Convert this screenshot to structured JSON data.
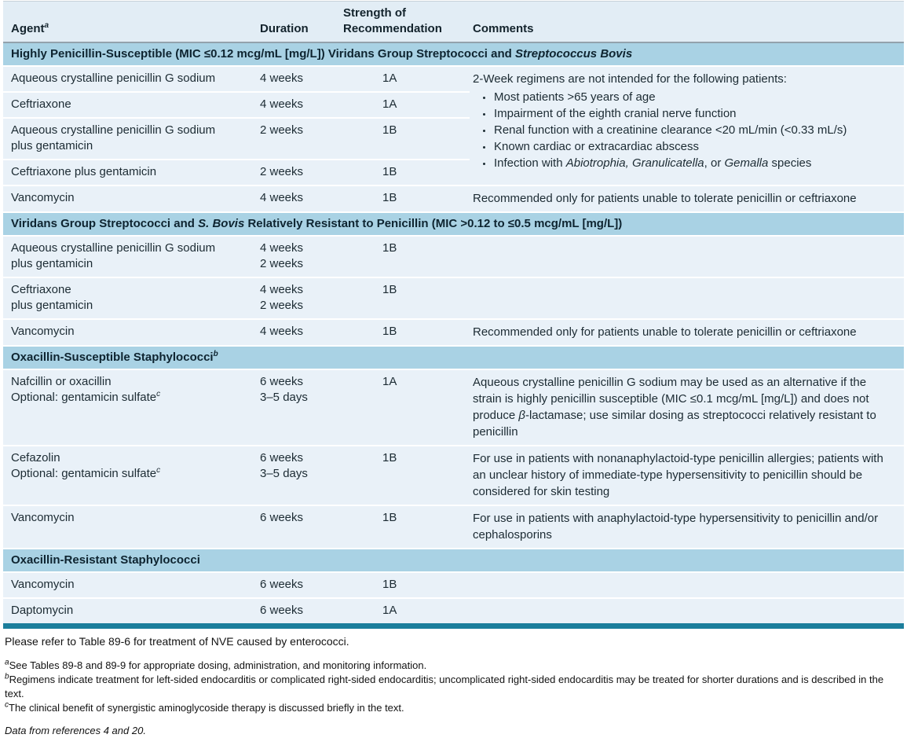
{
  "colors": {
    "section_header_bg": "#a9d2e4",
    "column_header_bg": "#e2edf5",
    "row_bg": "#e9f1f8",
    "accent_bar": "#1b7e9c"
  },
  "table": {
    "columns": [
      {
        "key": "agent",
        "label": "Agent^a^"
      },
      {
        "key": "duration",
        "label": "Duration"
      },
      {
        "key": "strength",
        "label": "Strength of\nRecommendation"
      },
      {
        "key": "comments",
        "label": "Comments"
      }
    ],
    "sections": [
      {
        "header": "Highly Penicillin-Susceptible (MIC ≤0.12 mcg/mL [mg/L]) Viridans Group Streptococci and *Streptococcus Bovis*",
        "rows": [
          {
            "agent": "Aqueous crystalline penicillin G sodium",
            "duration": "4 weeks",
            "strength": "1A",
            "comment": {
              "span": 4,
              "text": "2-Week regimens are not intended for the following patients:",
              "bullets": [
                "Most patients >65 years of age",
                "Impairment of the eighth cranial nerve function",
                "Renal function with a creatinine clearance <20 mL/min (<0.33 mL/s)",
                "Known cardiac or extracardiac abscess",
                "Infection with *Abiotrophia, Granulicatella*, or *Gemalla* species"
              ]
            }
          },
          {
            "agent": "Ceftriaxone",
            "duration": "4 weeks",
            "strength": "1A"
          },
          {
            "agent": "Aqueous crystalline penicillin G sodium\nplus gentamicin",
            "duration": "2 weeks",
            "strength": "1B"
          },
          {
            "agent": "Ceftriaxone plus gentamicin",
            "duration": "2 weeks",
            "strength": "1B"
          },
          {
            "agent": "Vancomycin",
            "duration": "4 weeks",
            "strength": "1B",
            "comment": {
              "text": "Recommended only for patients unable to tolerate penicillin or ceftriaxone"
            }
          }
        ]
      },
      {
        "header": "Viridans Group Streptococci and *S. Bovis* Relatively Resistant to Penicillin (MIC >0.12 to ≤0.5 mcg/mL [mg/L])",
        "rows": [
          {
            "agent": "Aqueous crystalline penicillin G sodium\nplus gentamicin",
            "duration": "4 weeks\n2 weeks",
            "strength": "1B"
          },
          {
            "agent": "Ceftriaxone\nplus gentamicin",
            "duration": "4 weeks\n2 weeks",
            "strength": "1B"
          },
          {
            "agent": "Vancomycin",
            "duration": "4 weeks",
            "strength": "1B",
            "comment": {
              "text": "Recommended only for patients unable to tolerate penicillin or ceftriaxone"
            }
          }
        ]
      },
      {
        "header": "Oxacillin-Susceptible Staphylococci^b^",
        "rows": [
          {
            "agent": "Nafcillin or oxacillin\nOptional: gentamicin sulfate^c^",
            "duration": "6 weeks\n3–5 days",
            "strength": "1A",
            "comment": {
              "text": "Aqueous crystalline penicillin G sodium may be used as an alternative if the strain is highly penicillin susceptible (MIC ≤0.1 mcg/mL [mg/L]) and does not produce *β*-lactamase; use similar dosing as streptococci relatively resistant to penicillin"
            }
          },
          {
            "agent": "Cefazolin\nOptional: gentamicin sulfate^c^",
            "duration": "6 weeks\n3–5 days",
            "strength": "1B",
            "comment": {
              "text": "For use in patients with nonanaphylactoid-type penicillin allergies; patients with an unclear history of immediate-type hypersensitivity to penicillin should be considered for skin testing"
            }
          },
          {
            "agent": "Vancomycin",
            "duration": "6 weeks",
            "strength": "1B",
            "comment": {
              "text": "For use in patients with anaphylactoid-type hypersensitivity to penicillin and/or cephalosporins"
            }
          }
        ]
      },
      {
        "header": "Oxacillin-Resistant Staphylococci",
        "rows": [
          {
            "agent": "Vancomycin",
            "duration": "6 weeks",
            "strength": "1B"
          },
          {
            "agent": "Daptomycin",
            "duration": "6 weeks",
            "strength": "1A"
          }
        ]
      }
    ]
  },
  "footer": {
    "note": "Please refer to Table 89-6 for treatment of NVE caused by enterococci.",
    "footnotes": [
      "^a^See Tables 89-8 and 89-9 for appropriate dosing, administration, and monitoring information.",
      "^b^Regimens indicate treatment for left-sided endocarditis or complicated right-sided endocarditis; uncomplicated right-sided endocarditis may be treated for shorter durations and is described in the text.",
      "^c^The clinical benefit of synergistic aminoglycoside therapy is discussed briefly in the text."
    ],
    "source": "Data from references 4 and 20."
  }
}
